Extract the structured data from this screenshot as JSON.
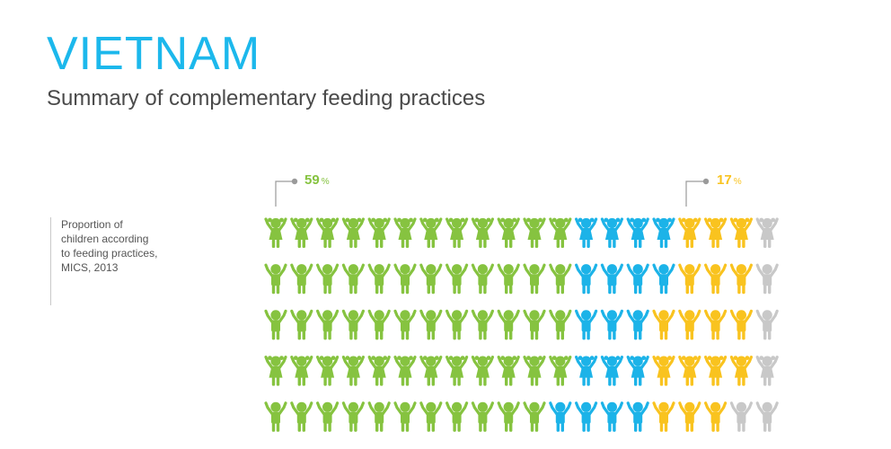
{
  "header": {
    "title": "VIETNAM",
    "subtitle": "Summary of complementary feeding practices"
  },
  "note": {
    "lines": [
      "Proportion of",
      "children according",
      "to feeding practices,",
      "MICS, 2013"
    ]
  },
  "colors": {
    "title": "#1CB8EC",
    "green": "#86C340",
    "blue": "#1CB3E8",
    "yellow": "#F9C31F",
    "grey": "#C8C8C8",
    "callout_line": "#9a9a9a"
  },
  "chart_data": {
    "type": "pictogram",
    "rows": 5,
    "columns": 20,
    "unit": "child icon",
    "grid": [
      [
        "green",
        "green",
        "green",
        "green",
        "green",
        "green",
        "green",
        "green",
        "green",
        "green",
        "green",
        "green",
        "blue",
        "blue",
        "blue",
        "blue",
        "yellow",
        "yellow",
        "yellow",
        "grey"
      ],
      [
        "green",
        "green",
        "green",
        "green",
        "green",
        "green",
        "green",
        "green",
        "green",
        "green",
        "green",
        "green",
        "blue",
        "blue",
        "blue",
        "blue",
        "yellow",
        "yellow",
        "yellow",
        "grey"
      ],
      [
        "green",
        "green",
        "green",
        "green",
        "green",
        "green",
        "green",
        "green",
        "green",
        "green",
        "green",
        "green",
        "blue",
        "blue",
        "blue",
        "yellow",
        "yellow",
        "yellow",
        "yellow",
        "grey"
      ],
      [
        "green",
        "green",
        "green",
        "green",
        "green",
        "green",
        "green",
        "green",
        "green",
        "green",
        "green",
        "green",
        "blue",
        "blue",
        "blue",
        "yellow",
        "yellow",
        "yellow",
        "yellow",
        "grey"
      ],
      [
        "green",
        "green",
        "green",
        "green",
        "green",
        "green",
        "green",
        "green",
        "green",
        "green",
        "green",
        "blue",
        "blue",
        "blue",
        "blue",
        "yellow",
        "yellow",
        "yellow",
        "grey",
        "grey"
      ]
    ],
    "callouts": [
      {
        "value": "59",
        "unit": "%",
        "color": "green"
      },
      {
        "value": "17",
        "unit": "%",
        "color": "yellow"
      }
    ]
  }
}
